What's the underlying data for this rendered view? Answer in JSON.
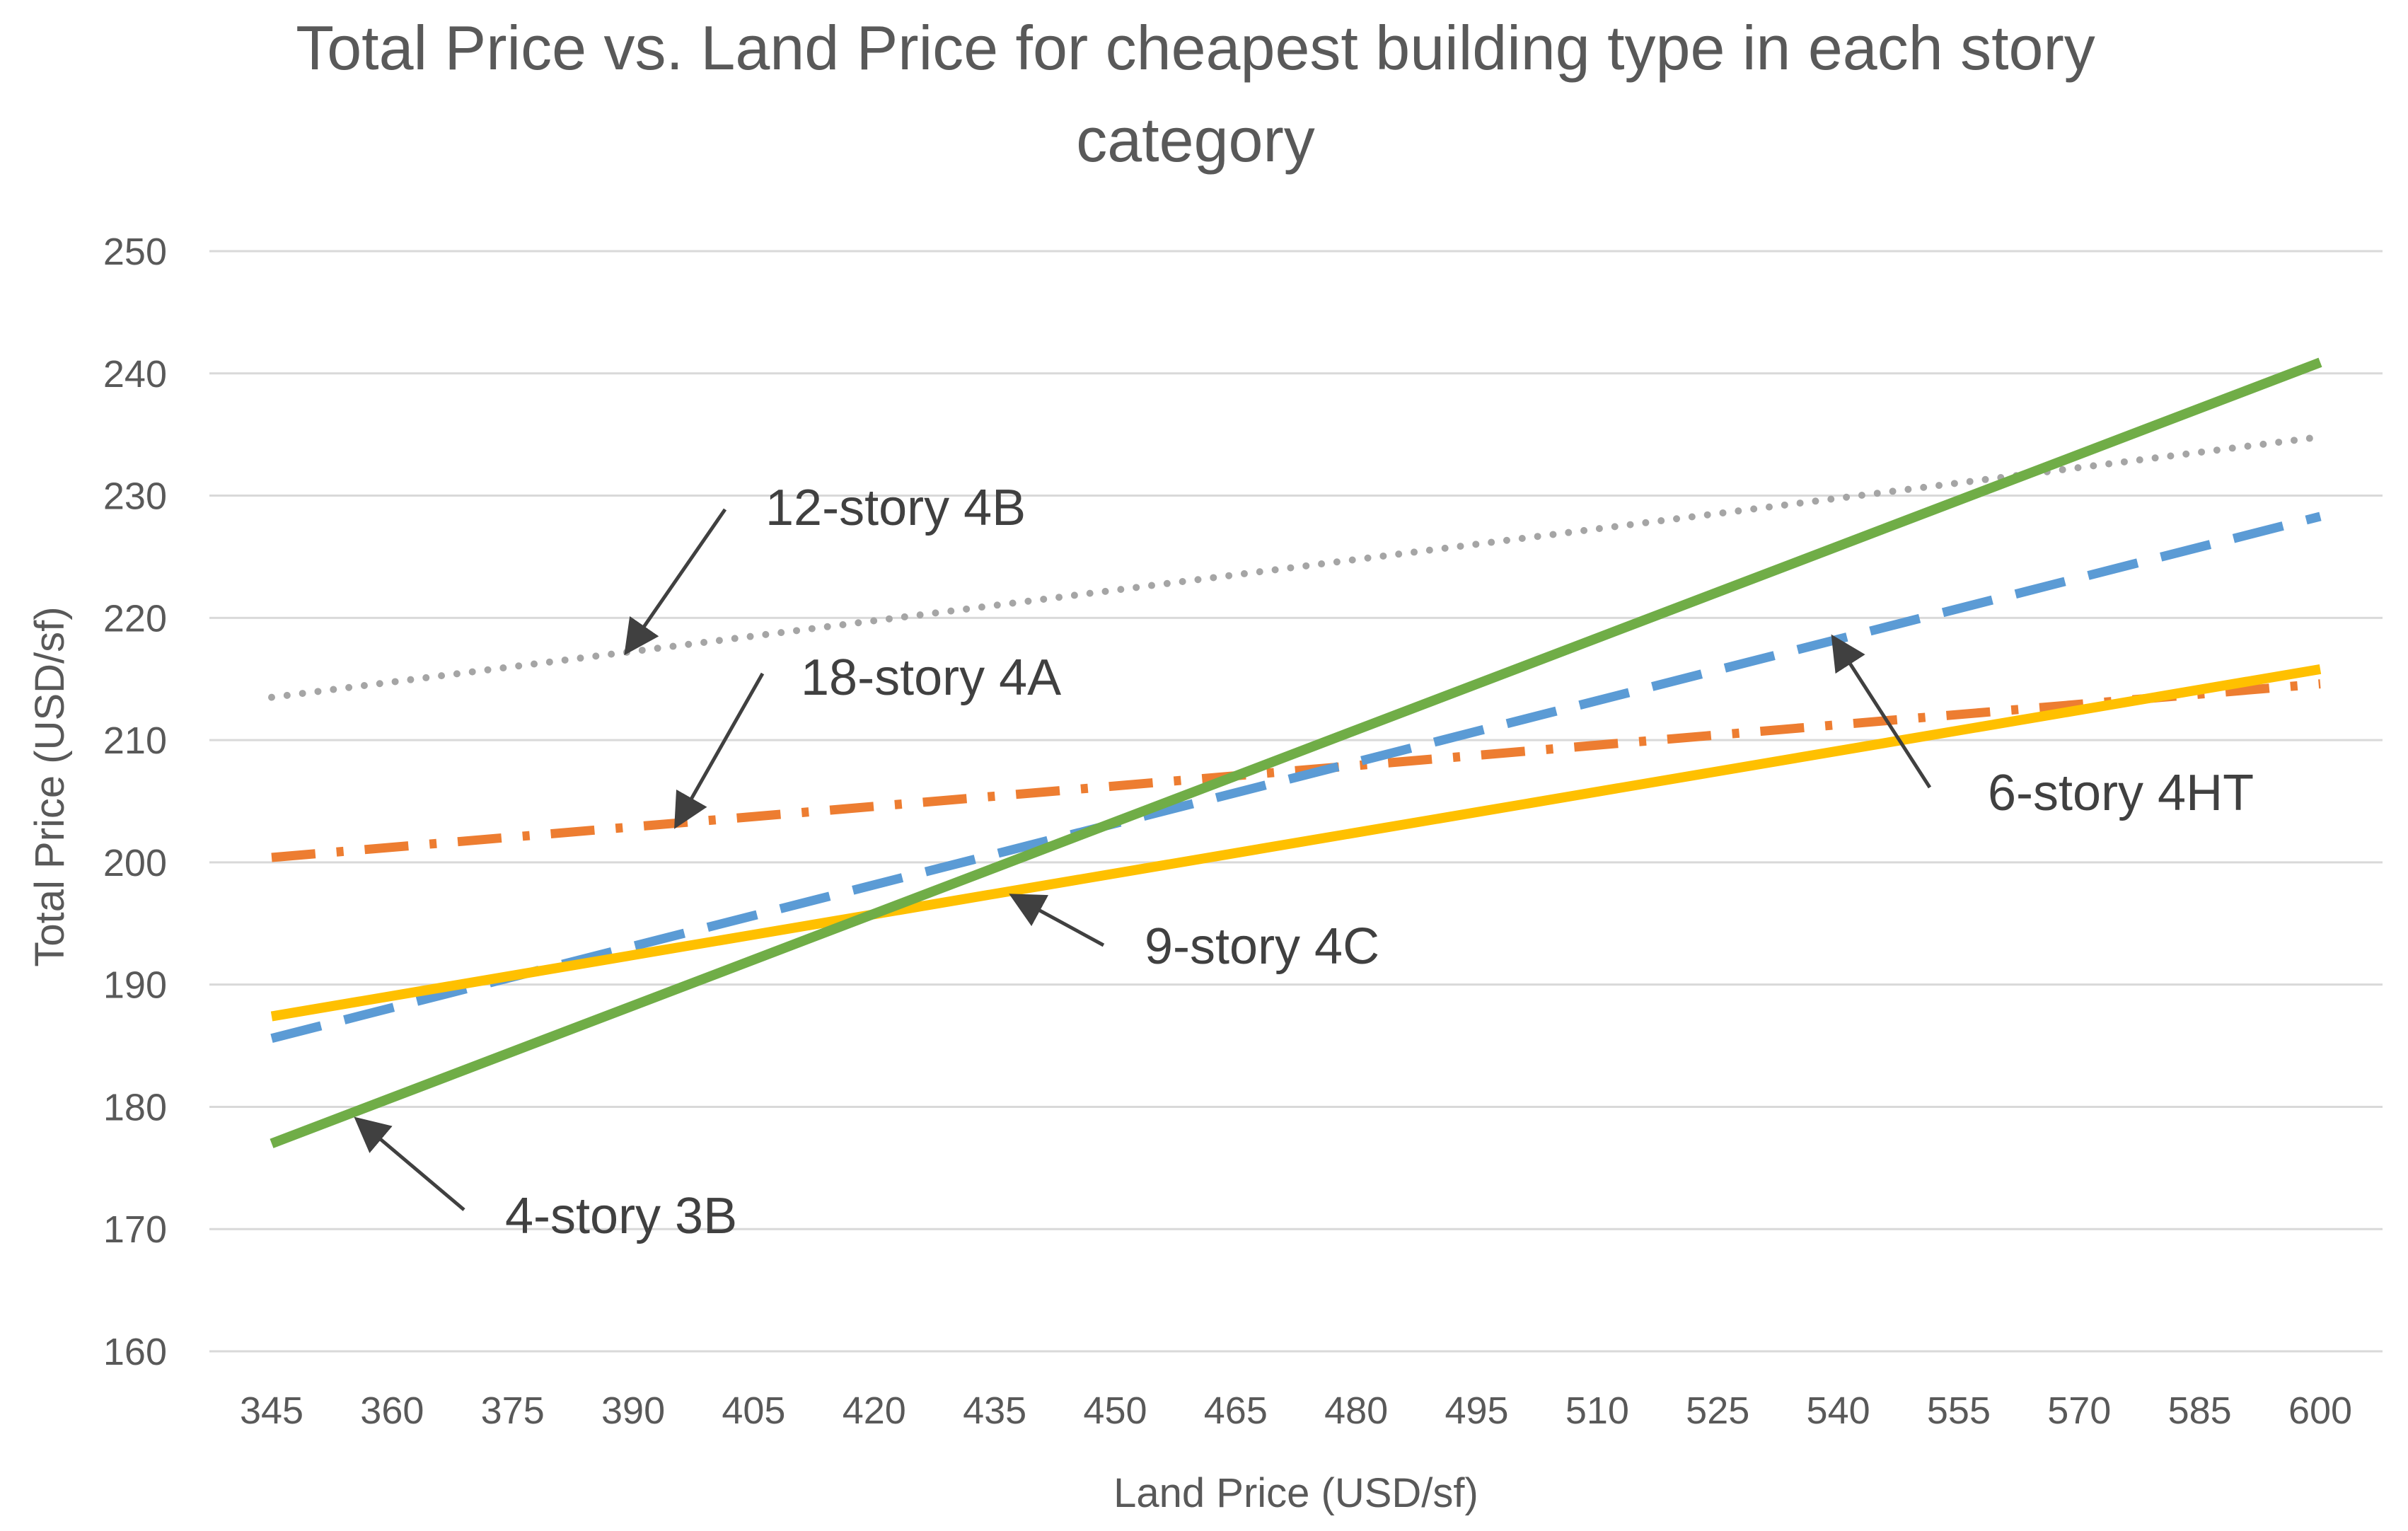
{
  "chart_data": {
    "type": "line",
    "title": [
      "Total Price vs. Land Price for cheapest building type in each story",
      "category"
    ],
    "xlabel": "Land Price (USD/sf)",
    "ylabel": "Total Price (USD/sf)",
    "x": [
      345,
      360,
      375,
      390,
      405,
      420,
      435,
      450,
      465,
      480,
      495,
      510,
      525,
      540,
      555,
      570,
      585,
      600
    ],
    "x_tick_labels": [
      "345",
      "360",
      "375",
      "390",
      "405",
      "420",
      "435",
      "450",
      "465",
      "480",
      "495",
      "510",
      "525",
      "540",
      "555",
      "570",
      "585",
      "600"
    ],
    "ylim": [
      160,
      250
    ],
    "y_ticks": [
      160,
      170,
      180,
      190,
      200,
      210,
      220,
      230,
      240,
      250
    ],
    "grid": true,
    "series": [
      {
        "name": "12-story 4B",
        "x_range": [
          345,
          600
        ],
        "y_range": [
          213.5,
          234.8
        ],
        "color": "#a5a5a5",
        "dash": "dotted"
      },
      {
        "name": "18-story 4A",
        "x_range": [
          345,
          600
        ],
        "y_range": [
          200.4,
          214.6
        ],
        "color": "#ed7d31",
        "dash": "dashdot"
      },
      {
        "name": "6-story 4HT",
        "x_range": [
          345,
          600
        ],
        "y_range": [
          185.6,
          228.3
        ],
        "color": "#5b9bd5",
        "dash": "dashed"
      },
      {
        "name": "9-story 4C",
        "x_range": [
          345,
          600
        ],
        "y_range": [
          187.4,
          215.8
        ],
        "color": "#ffc000",
        "dash": "solid"
      },
      {
        "name": "4-story 3B",
        "x_range": [
          345,
          600
        ],
        "y_range": [
          177.0,
          240.9
        ],
        "color": "#70ad47",
        "dash": "solid"
      }
    ],
    "annotations": [
      {
        "text": "12-story 4B",
        "series": "12-story 4B",
        "arrow_to": [
          390,
          217.1
        ]
      },
      {
        "text": "18-story 4A",
        "series": "18-story 4A",
        "arrow_to": [
          395,
          203.2
        ]
      },
      {
        "text": "6-story 4HT",
        "series": "6-story 4HT",
        "arrow_to": [
          540,
          218.2
        ]
      },
      {
        "text": "9-story 4C",
        "series": "9-story 4C",
        "arrow_to": [
          440,
          198.0
        ]
      },
      {
        "text": "4-story 3B",
        "series": "4-story 3B",
        "arrow_to": [
          355,
          179.9
        ]
      }
    ]
  }
}
